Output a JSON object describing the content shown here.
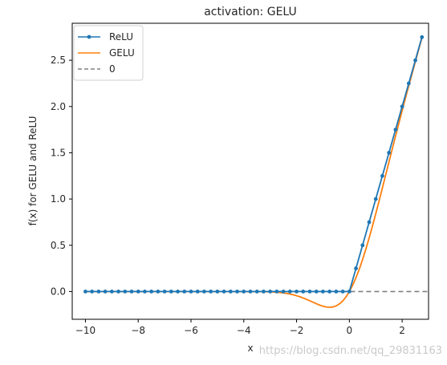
{
  "chart_data": {
    "type": "line",
    "title": "activation: GELU",
    "xlabel": "x",
    "ylabel": "f(x) for GELU and ReLU",
    "xlim": [
      -10.5,
      3.0
    ],
    "ylim": [
      -0.3,
      2.9
    ],
    "xticks": [
      -10,
      -8,
      -6,
      -4,
      -2,
      0,
      2
    ],
    "xtick_labels": [
      "−10",
      "−8",
      "−6",
      "−4",
      "−2",
      "0",
      "2"
    ],
    "yticks": [
      0.0,
      0.5,
      1.0,
      1.5,
      2.0,
      2.5
    ],
    "ytick_labels": [
      "0.0",
      "0.5",
      "1.0",
      "1.5",
      "2.0",
      "2.5"
    ],
    "grid": false,
    "legend_position": "top-left",
    "series": [
      {
        "name": "ReLU",
        "color": "#1f77b4",
        "style": "solid-with-markers",
        "function": "relu",
        "x_start": -10,
        "x_step": 0.25,
        "x_end": 2.75
      },
      {
        "name": "GELU",
        "color": "#ff7f0e",
        "style": "solid",
        "function": "gelu",
        "x_start": -10,
        "x_end": 2.75
      },
      {
        "name": "0",
        "color": "#808080",
        "style": "dashed",
        "function": "zero",
        "x_start": -10,
        "x_end": 3.0
      }
    ]
  },
  "watermark": "https://blog.csdn.net/qq_29831163"
}
